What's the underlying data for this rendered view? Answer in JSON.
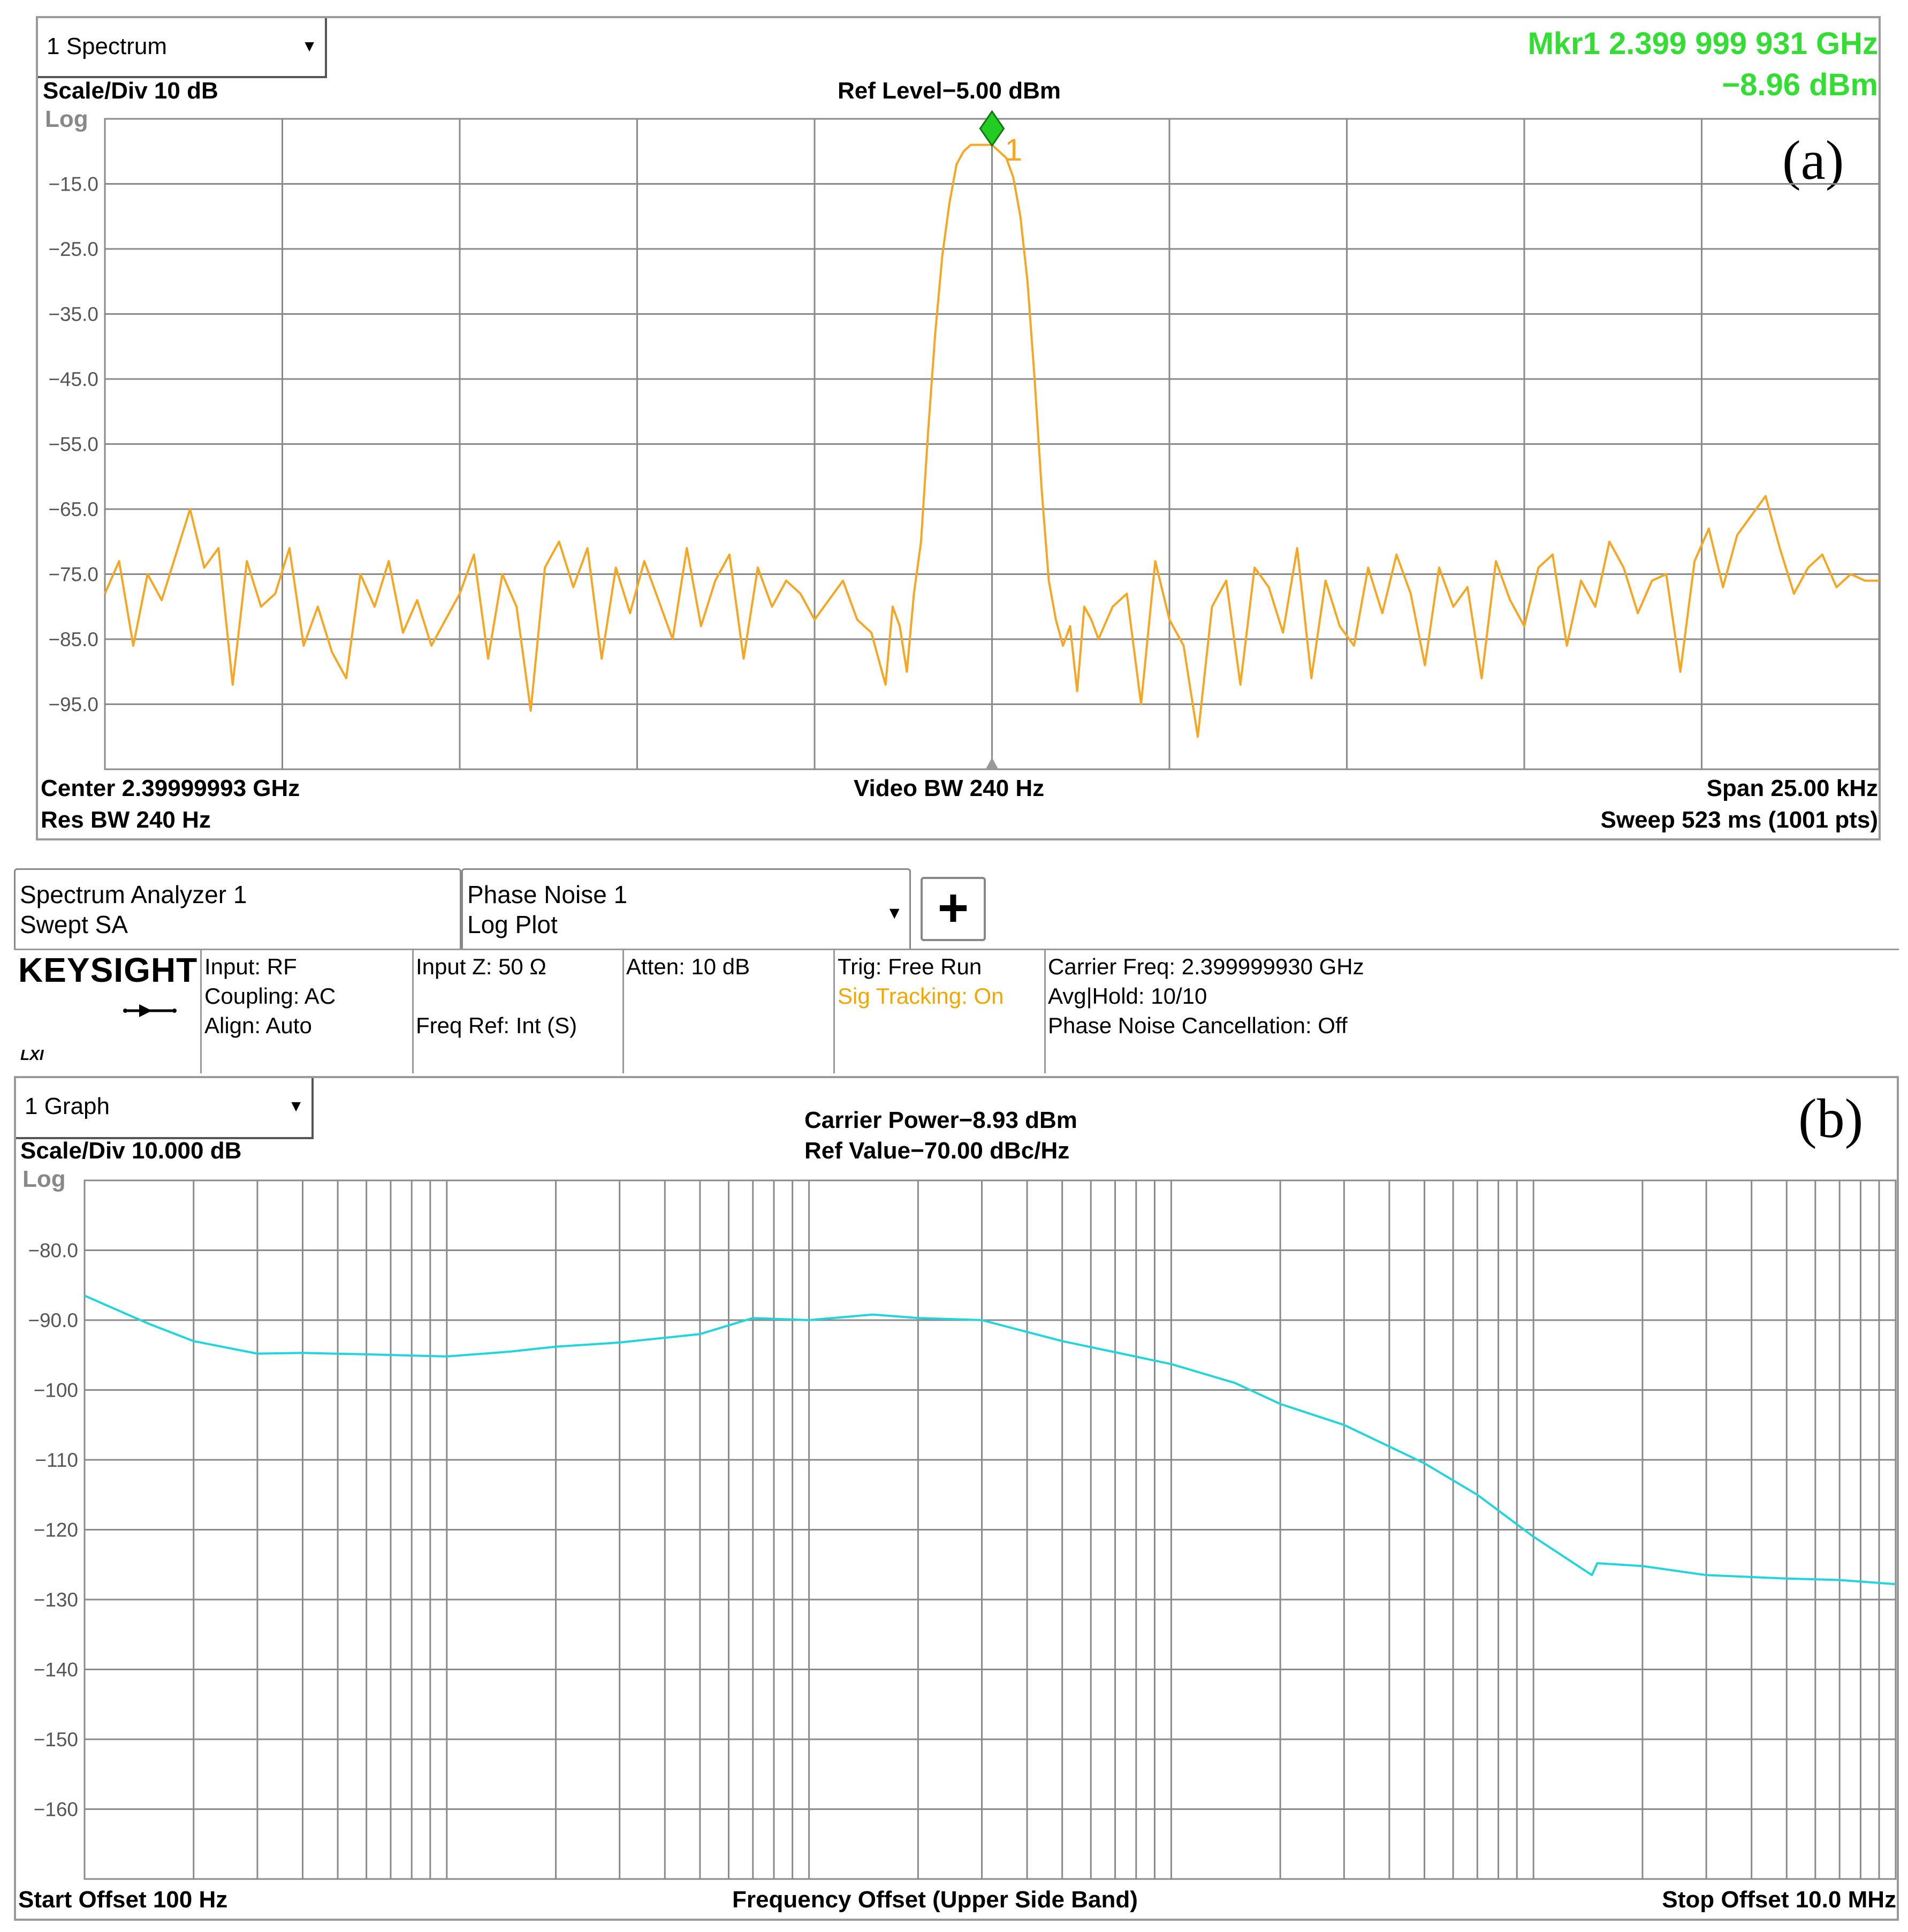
{
  "spectrum": {
    "dropdown": "1 Spectrum",
    "dropdown_arrow": "▼",
    "scale_div": "Scale/Div 10 dB",
    "log": "Log",
    "ref_level": "Ref Level−5.00 dBm",
    "marker_freq": "Mkr1  2.399 999 931 GHz",
    "marker_level": "−8.96 dBm",
    "marker_number": "1",
    "panel_label": "(a)",
    "center": "Center 2.39999993 GHz",
    "res_bw": "Res BW 240 Hz",
    "video_bw": "Video BW 240 Hz",
    "span": "Span 25.00 kHz",
    "sweep": "Sweep 523 ms (1001 pts)"
  },
  "analyzer": {
    "tab1_line1": "Spectrum Analyzer 1",
    "tab1_line2": "Swept SA",
    "tab2_line1": "Phase Noise 1",
    "tab2_line2": "Log Plot",
    "tab2_arrow": "▼",
    "plus": "+",
    "brand": "KEYSIGHT",
    "lxi": "LXI",
    "input": "Input: RF",
    "coupling": "Coupling: AC",
    "align": "Align: Auto",
    "input_z": "Input Z: 50 Ω",
    "freq_ref": "Freq Ref: Int (S)",
    "atten": "Atten: 10 dB",
    "trig": "Trig: Free Run",
    "sig_tracking": "Sig Tracking: On",
    "carrier_freq": "Carrier Freq: 2.399999930 GHz",
    "avg_hold": "Avg|Hold: 10/10",
    "pn_cancel": "Phase Noise Cancellation: Off",
    "colors": {
      "sig_tracking": "#f0a800"
    }
  },
  "phase_noise": {
    "dropdown": "1 Graph",
    "dropdown_arrow": "▼",
    "scale_div": "Scale/Div 10.000 dB",
    "log": "Log",
    "carrier_power": "Carrier Power−8.93 dBm",
    "ref_value": "Ref Value−70.00 dBc/Hz",
    "panel_label": "(b)",
    "start": "Start Offset 100 Hz",
    "xlabel": "Frequency Offset (Upper Side Band)",
    "stop": "Stop Offset 10.0 MHz"
  },
  "chart_data": [
    {
      "type": "line",
      "title": "Ref Level−5.00 dBm",
      "xlabel": "",
      "ylabel": "",
      "x_unit": "kHz offset from center",
      "xlim": [
        -12.5,
        12.5
      ],
      "ylim": [
        -105,
        -5
      ],
      "ytick_labels": [
        "−15.0",
        "−25.0",
        "−35.0",
        "−45.0",
        "−55.0",
        "−65.0",
        "−75.0",
        "−85.0",
        "−95.0"
      ],
      "ytick_values": [
        -15,
        -25,
        -35,
        -45,
        -55,
        -65,
        -75,
        -85,
        -95
      ],
      "grid": true,
      "colors": {
        "trace": "#f5a623",
        "marker": "#22cc22"
      },
      "marker": {
        "x": 0.0,
        "y": -8.96,
        "label": "1"
      },
      "series": [
        {
          "x": [
            -12.5,
            -12.3,
            -12.1,
            -11.9,
            -11.7,
            -11.5,
            -11.3,
            -11.1,
            -10.9,
            -10.7,
            -10.5,
            -10.3,
            -10.1,
            -9.9,
            -9.7,
            -9.5,
            -9.3,
            -9.1,
            -8.9,
            -8.7,
            -8.5,
            -8.3,
            -8.1,
            -7.9,
            -7.7,
            -7.5,
            -7.3,
            -7.1,
            -6.9,
            -6.7,
            -6.5,
            -6.3,
            -6.1,
            -5.9,
            -5.7,
            -5.5,
            -5.3,
            -5.1,
            -4.9,
            -4.7,
            -4.5,
            -4.3,
            -4.1,
            -3.9,
            -3.7,
            -3.5,
            -3.3,
            -3.1,
            -2.9,
            -2.7,
            -2.5,
            -2.3,
            -2.1,
            -1.9,
            -1.7,
            -1.5,
            -1.4,
            -1.3,
            -1.2,
            -1.1,
            -1.0,
            -0.9,
            -0.8,
            -0.7,
            -0.6,
            -0.5,
            -0.4,
            -0.3,
            -0.2,
            -0.1,
            0.0,
            0.1,
            0.2,
            0.3,
            0.4,
            0.5,
            0.6,
            0.7,
            0.8,
            0.9,
            1.0,
            1.1,
            1.2,
            1.3,
            1.4,
            1.5,
            1.7,
            1.9,
            2.1,
            2.3,
            2.5,
            2.7,
            2.9,
            3.1,
            3.3,
            3.5,
            3.7,
            3.9,
            4.1,
            4.3,
            4.5,
            4.7,
            4.9,
            5.1,
            5.3,
            5.5,
            5.7,
            5.9,
            6.1,
            6.3,
            6.5,
            6.7,
            6.9,
            7.1,
            7.3,
            7.5,
            7.7,
            7.9,
            8.1,
            8.3,
            8.5,
            8.7,
            8.9,
            9.1,
            9.3,
            9.5,
            9.7,
            9.9,
            10.1,
            10.3,
            10.5,
            10.7,
            10.9,
            11.1,
            11.3,
            11.5,
            11.7,
            11.9,
            12.1,
            12.3,
            12.5
          ],
          "y": [
            -78,
            -73,
            -86,
            -75,
            -79,
            -72,
            -65,
            -74,
            -71,
            -92,
            -73,
            -80,
            -78,
            -71,
            -86,
            -80,
            -87,
            -91,
            -75,
            -80,
            -73,
            -84,
            -79,
            -86,
            -82,
            -78,
            -72,
            -88,
            -75,
            -80,
            -96,
            -74,
            -70,
            -77,
            -71,
            -88,
            -74,
            -81,
            -73,
            -79,
            -85,
            -71,
            -83,
            -76,
            -72,
            -88,
            -74,
            -80,
            -76,
            -78,
            -82,
            -79,
            -76,
            -82,
            -84,
            -92,
            -80,
            -83,
            -90,
            -78,
            -70,
            -53,
            -38,
            -26,
            -18,
            -12,
            -10,
            -9,
            -9,
            -9,
            -9,
            -10,
            -11,
            -14,
            -20,
            -30,
            -45,
            -62,
            -76,
            -82,
            -86,
            -83,
            -93,
            -80,
            -82,
            -85,
            -80,
            -78,
            -95,
            -73,
            -82,
            -86,
            -100,
            -80,
            -76,
            -92,
            -74,
            -77,
            -84,
            -71,
            -91,
            -76,
            -83,
            -86,
            -74,
            -81,
            -72,
            -78,
            -89,
            -74,
            -80,
            -77,
            -91,
            -73,
            -79,
            -83,
            -74,
            -72,
            -86,
            -76,
            -80,
            -70,
            -74,
            -81,
            -76,
            -75,
            -90,
            -73,
            -68,
            -77,
            -69,
            -66,
            -63,
            -71,
            -78,
            -74,
            -72,
            -77,
            -75,
            -76,
            -76
          ]
        }
      ]
    },
    {
      "type": "line",
      "title": "Carrier Power−8.93 dBm",
      "xlabel": "Frequency Offset (Upper Side Band)",
      "ylabel": "",
      "x_scale": "log",
      "x_unit": "Hz",
      "xlim": [
        100,
        10000000
      ],
      "ylim": [
        -170,
        -70
      ],
      "ytick_labels": [
        "−80.0",
        "−90.0",
        "−100",
        "−110",
        "−120",
        "−130",
        "−140",
        "−150",
        "−160"
      ],
      "ytick_values": [
        -80,
        -90,
        -100,
        -110,
        -120,
        -130,
        -140,
        -150,
        -160
      ],
      "grid": true,
      "colors": {
        "trace": "#22d4dc"
      },
      "series": [
        {
          "x": [
            100,
            150,
            200,
            300,
            400,
            600,
            1000,
            1500,
            2000,
            3000,
            5000,
            7000,
            10000,
            15000,
            20000,
            30000,
            50000,
            70000,
            100000,
            150000,
            200000,
            300000,
            500000,
            700000,
            1000000,
            1450000,
            1500000,
            2000000,
            3000000,
            5000000,
            7000000,
            10000000
          ],
          "y": [
            -86.5,
            -90.5,
            -93.0,
            -94.8,
            -94.7,
            -94.9,
            -95.2,
            -94.5,
            -93.8,
            -93.2,
            -92.0,
            -89.7,
            -90.0,
            -89.2,
            -89.7,
            -90.0,
            -93.0,
            -94.6,
            -96.3,
            -99.0,
            -102.0,
            -105.0,
            -110.5,
            -115.0,
            -121.0,
            -126.5,
            -124.8,
            -125.2,
            -126.5,
            -127.0,
            -127.2,
            -127.8
          ]
        }
      ]
    }
  ]
}
